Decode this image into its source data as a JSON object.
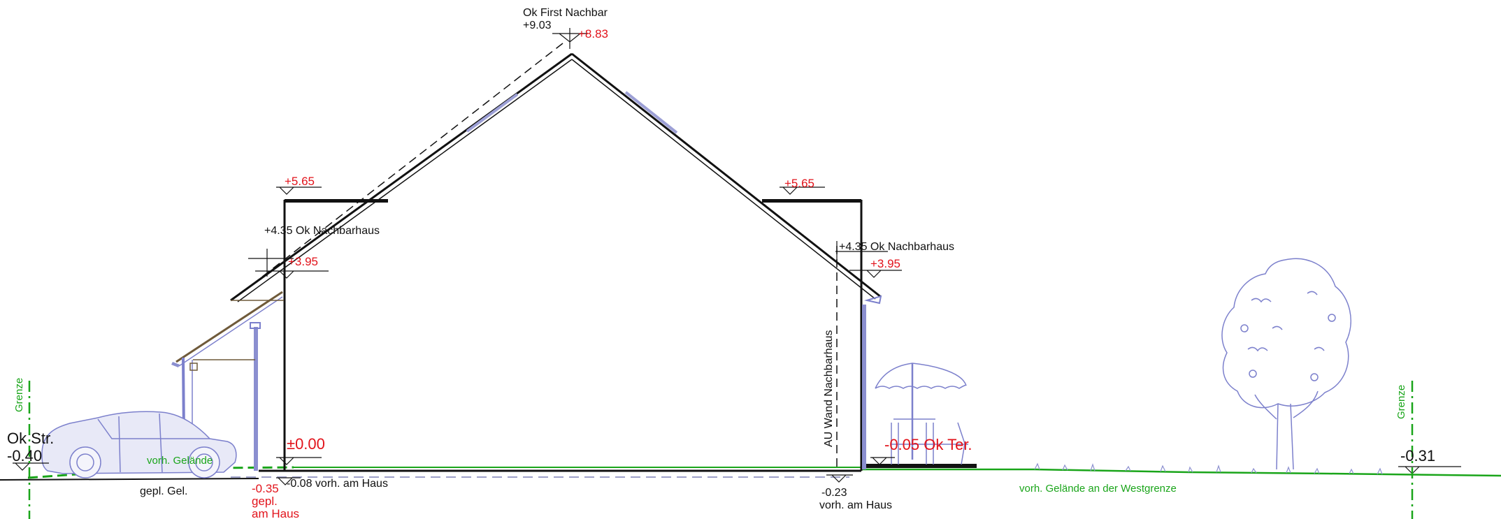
{
  "colors": {
    "line": "#111111",
    "planned_level": "#e2131b",
    "terrain": "#1aa51a",
    "symbol": "#7c80cc"
  },
  "labels": {
    "ridge_neighbour": "Ok First Nachbar",
    "ridge_neighbour_level": "+9.03",
    "ridge_planned": "+8.83",
    "eave_left_top": "+5.65",
    "eave_right_top": "+5.65",
    "neighbour_house_left": "+4.35 Ok Nachbarhaus",
    "neighbour_house_right": "+4.35 Ok Nachbarhaus",
    "eave_left": "+3.95",
    "eave_right": "+3.95",
    "zero_level": "±0.00",
    "street_label": "Ok Str.",
    "street_level": "-0.40",
    "existing_at_house_left": "-0.08 vorh. am Haus",
    "planned_at_house_level": "-0.35",
    "planned_at_house_text1": "gepl.",
    "planned_at_house_text2": "am Haus",
    "planned_ground": "gepl. Gel.",
    "existing_terrain": "vorh. Gelände",
    "boundary_left": "Grenze",
    "boundary_right": "Grenze",
    "wall_neighbour": "AU Wand Nachbarhaus",
    "existing_at_house_right_level": "-0.23",
    "existing_at_house_right_text": "vorh. am Haus",
    "terrace": "-0.05 Ok Ter.",
    "west_terrain": "vorh. Gelände an der Westgrenze",
    "right_level": "-0.31"
  }
}
